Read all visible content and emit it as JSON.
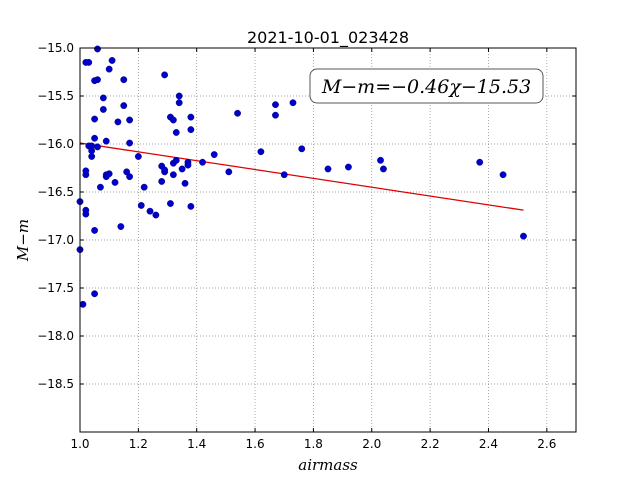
{
  "chart_data": {
    "type": "scatter",
    "title": "2021-10-01_023428",
    "xlabel": "airmass",
    "ylabel": "M−m",
    "xlim": [
      1.0,
      2.7
    ],
    "ylim": [
      -15.0,
      -19.0
    ],
    "y_inverted": true,
    "grid": true,
    "x_ticks": [
      1.0,
      1.2,
      1.4,
      1.6,
      1.8,
      2.0,
      2.2,
      2.4,
      2.6
    ],
    "x_tick_labels": [
      "1.0",
      "1.2",
      "1.4",
      "1.6",
      "1.8",
      "2.0",
      "2.2",
      "2.4",
      "2.6"
    ],
    "y_ticks": [
      -15.0,
      -15.5,
      -16.0,
      -16.5,
      -17.0,
      -17.5,
      -18.0,
      -18.5
    ],
    "y_tick_labels": [
      "−15.0",
      "−15.5",
      "−16.0",
      "−16.5",
      "−17.0",
      "−17.5",
      "−18.0",
      "−18.5"
    ],
    "annotation": "M−m=−0.46χ−15.53",
    "marker_color": "#0000cc",
    "fit_color": "#dd0000",
    "fit": {
      "slope": -0.46,
      "intercept": -15.53,
      "x_range": [
        1.0,
        2.52
      ]
    },
    "series": [
      {
        "x": [
          1.0,
          1.0,
          1.01,
          1.02,
          1.02,
          1.02,
          1.02,
          1.02,
          1.03,
          1.03,
          1.04,
          1.04,
          1.04,
          1.05,
          1.05,
          1.05,
          1.05,
          1.05,
          1.06,
          1.06,
          1.06,
          1.07,
          1.08,
          1.08,
          1.09,
          1.09,
          1.09,
          1.1,
          1.1,
          1.11,
          1.12,
          1.13,
          1.14,
          1.15,
          1.15,
          1.16,
          1.17,
          1.17,
          1.17,
          1.2,
          1.21,
          1.22,
          1.24,
          1.26,
          1.28,
          1.28,
          1.29,
          1.29,
          1.29,
          1.31,
          1.31,
          1.32,
          1.32,
          1.32,
          1.33,
          1.33,
          1.34,
          1.34,
          1.35,
          1.36,
          1.37,
          1.37,
          1.38,
          1.38,
          1.38,
          1.42,
          1.46,
          1.51,
          1.54,
          1.62,
          1.67,
          1.67,
          1.7,
          1.73,
          1.76,
          1.85,
          1.92,
          2.03,
          2.04,
          2.37,
          2.45,
          2.52
        ],
        "y": [
          -16.6,
          -17.1,
          -17.67,
          -15.15,
          -16.32,
          -16.28,
          -16.73,
          -16.69,
          -15.15,
          -16.02,
          -16.13,
          -16.07,
          -16.02,
          -15.34,
          -15.74,
          -15.94,
          -16.9,
          -17.56,
          -16.03,
          -15.01,
          -15.33,
          -16.45,
          -15.64,
          -15.52,
          -16.34,
          -16.32,
          -15.97,
          -15.22,
          -16.31,
          -15.13,
          -16.4,
          -15.77,
          -16.86,
          -15.6,
          -15.33,
          -16.29,
          -15.75,
          -15.99,
          -16.34,
          -16.13,
          -16.64,
          -16.45,
          -16.7,
          -16.74,
          -16.39,
          -16.23,
          -15.28,
          -16.29,
          -16.27,
          -15.72,
          -16.62,
          -16.32,
          -15.75,
          -16.2,
          -16.17,
          -15.88,
          -15.5,
          -15.57,
          -16.26,
          -16.41,
          -16.22,
          -16.19,
          -15.72,
          -15.85,
          -16.65,
          -16.19,
          -16.11,
          -16.29,
          -15.68,
          -16.08,
          -15.59,
          -15.7,
          -16.32,
          -15.57,
          -16.05,
          -16.26,
          -16.24,
          -16.17,
          -16.26,
          -16.19,
          -16.32,
          -16.96
        ]
      }
    ]
  }
}
